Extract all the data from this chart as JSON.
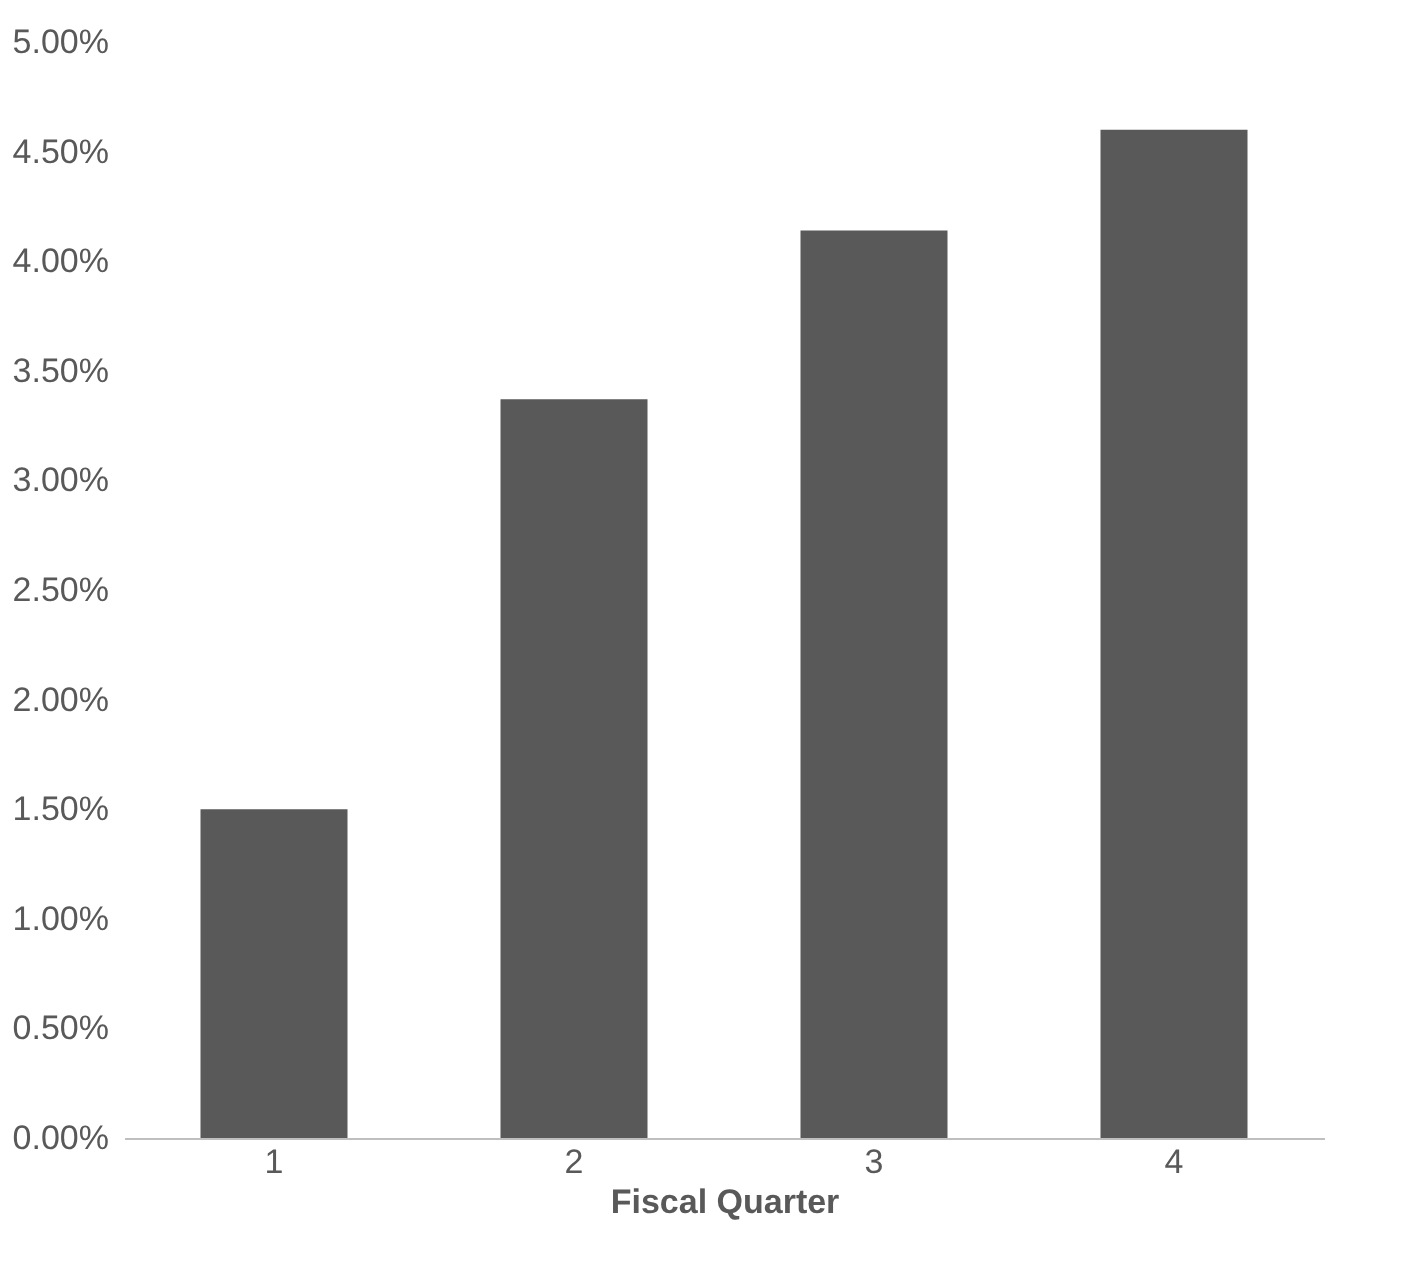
{
  "chart_data": {
    "type": "bar",
    "xlabel": "Fiscal Quarter",
    "categories": [
      "1",
      "2",
      "3",
      "4"
    ],
    "values": [
      1.5,
      3.37,
      4.14,
      4.6
    ],
    "color": "#595959",
    "ylim": [
      0,
      5
    ],
    "yticks": [
      {
        "value": 0,
        "label": "0.00%"
      },
      {
        "value": 0.5,
        "label": "0.50%"
      },
      {
        "value": 1,
        "label": "1.00%"
      },
      {
        "value": 1.5,
        "label": "1.50%"
      },
      {
        "value": 2,
        "label": "2.00%"
      },
      {
        "value": 2.5,
        "label": "2.50%"
      },
      {
        "value": 3,
        "label": "3.00%"
      },
      {
        "value": 3.5,
        "label": "3.50%"
      },
      {
        "value": 4,
        "label": "4.00%"
      },
      {
        "value": 4.5,
        "label": "4.50%"
      },
      {
        "value": 5,
        "label": "5.00%"
      }
    ],
    "grid": false
  }
}
